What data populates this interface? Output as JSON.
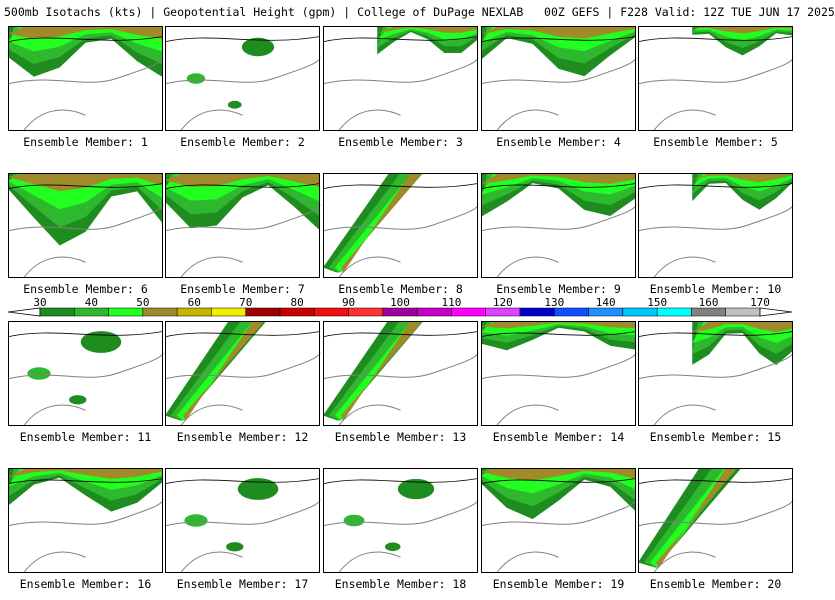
{
  "title": "500mb Isotachs (kts) | Geopotential Height (gpm) | College of DuPage NEXLAB   00Z GEFS | F228 Valid: 12Z TUE JUN 17 2025",
  "panels": [
    {
      "label": "Ensemble Member: 1",
      "coverage": 0.35,
      "pattern": "top-band"
    },
    {
      "label": "Ensemble Member: 2",
      "coverage": 0.05,
      "pattern": "sparse"
    },
    {
      "label": "Ensemble Member: 3",
      "coverage": 0.2,
      "pattern": "top-right"
    },
    {
      "label": "Ensemble Member: 4",
      "coverage": 0.35,
      "pattern": "top-band"
    },
    {
      "label": "Ensemble Member: 5",
      "coverage": 0.2,
      "pattern": "top-right"
    },
    {
      "label": "Ensemble Member: 6",
      "coverage": 0.5,
      "pattern": "top-band"
    },
    {
      "label": "Ensemble Member: 7",
      "coverage": 0.4,
      "pattern": "top-band"
    },
    {
      "label": "Ensemble Member: 8",
      "coverage": 0.3,
      "pattern": "diagonal"
    },
    {
      "label": "Ensemble Member: 9",
      "coverage": 0.3,
      "pattern": "top-band"
    },
    {
      "label": "Ensemble Member: 10",
      "coverage": 0.25,
      "pattern": "top-right"
    },
    {
      "label": "Ensemble Member: 11",
      "coverage": 0.15,
      "pattern": "sparse"
    },
    {
      "label": "Ensemble Member: 12",
      "coverage": 0.4,
      "pattern": "diagonal"
    },
    {
      "label": "Ensemble Member: 13",
      "coverage": 0.35,
      "pattern": "diagonal"
    },
    {
      "label": "Ensemble Member: 14",
      "coverage": 0.2,
      "pattern": "top-band"
    },
    {
      "label": "Ensemble Member: 15",
      "coverage": 0.3,
      "pattern": "top-right"
    },
    {
      "label": "Ensemble Member: 16",
      "coverage": 0.3,
      "pattern": "top-band"
    },
    {
      "label": "Ensemble Member: 17",
      "coverage": 0.15,
      "pattern": "sparse"
    },
    {
      "label": "Ensemble Member: 18",
      "coverage": 0.1,
      "pattern": "sparse"
    },
    {
      "label": "Ensemble Member: 19",
      "coverage": 0.35,
      "pattern": "top-band"
    },
    {
      "label": "Ensemble Member: 20",
      "coverage": 0.5,
      "pattern": "diagonal"
    }
  ],
  "colorbar": {
    "ticks": [
      "30",
      "40",
      "50",
      "60",
      "70",
      "80",
      "90",
      "100",
      "110",
      "120",
      "130",
      "140",
      "150",
      "160",
      "170"
    ],
    "colors": [
      "#1e8c1e",
      "#2eb82e",
      "#20ff20",
      "#a08a2a",
      "#c8b400",
      "#f0f000",
      "#a00000",
      "#c80000",
      "#f01010",
      "#ff3030",
      "#a000a0",
      "#c800c8",
      "#ff00ff",
      "#e040ff",
      "#0000c8",
      "#1050ff",
      "#1e90ff",
      "#00c8ff",
      "#00ffff",
      "#808080",
      "#c0c0c0"
    ]
  }
}
